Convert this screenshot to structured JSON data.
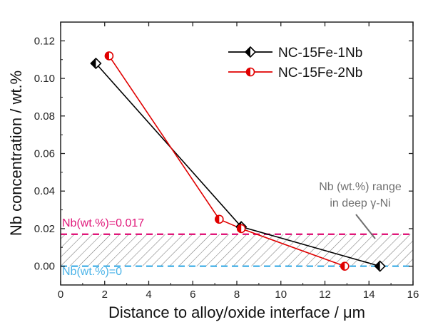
{
  "chart_data": {
    "type": "line",
    "xlabel": "Distance to alloy/oxide interface / μm",
    "ylabel": "Nb concentration / wt.%",
    "xlim": [
      0,
      16
    ],
    "ylim": [
      -0.01,
      0.13
    ],
    "xticks": [
      0,
      2,
      4,
      6,
      8,
      10,
      12,
      14,
      16
    ],
    "yticks": [
      0.0,
      0.02,
      0.04,
      0.06,
      0.08,
      0.1,
      0.12
    ],
    "grid": false,
    "legend_position": "top-right",
    "series": [
      {
        "name": "NC-15Fe-1Nb",
        "color": "#000000",
        "marker": "half-filled-diamond",
        "x": [
          1.6,
          8.2,
          14.5
        ],
        "y": [
          0.108,
          0.021,
          0.0
        ]
      },
      {
        "name": "NC-15Fe-2Nb",
        "color": "#e00000",
        "marker": "half-filled-circle",
        "x": [
          2.2,
          7.2,
          8.2,
          12.9
        ],
        "y": [
          0.112,
          0.025,
          0.02,
          0.0
        ]
      }
    ],
    "reference_lines": [
      {
        "label": "Nb(wt.%)=0.017",
        "y": 0.017,
        "color": "#e0177a",
        "style": "dashed"
      },
      {
        "label": "Nb(wt.%)=0",
        "y": 0.0,
        "color": "#4ab3e8",
        "style": "dashed"
      }
    ],
    "shaded_band": {
      "y_from": 0.0,
      "y_to": 0.017,
      "pattern": "diagonal-hatch"
    },
    "annotation": {
      "lines": [
        "Nb (wt.%) range",
        "in deep γ-Ni"
      ],
      "color": "#707070"
    }
  }
}
